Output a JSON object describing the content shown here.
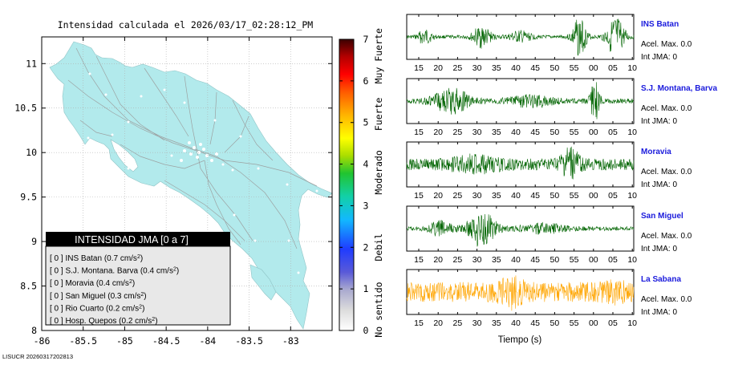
{
  "map": {
    "title": "Intensidad calculada el 2026/03/17_02:28:12_PM",
    "xlim": [
      -86,
      -82.5
    ],
    "ylim": [
      8,
      11.3
    ],
    "xticks": [
      -86,
      -85.5,
      -85,
      -84.5,
      -84,
      -83.5,
      -83
    ],
    "xtick_labels": [
      "-86",
      "-85.5",
      "-85",
      "-84.5",
      "-84",
      "-83.5",
      "-83"
    ],
    "yticks": [
      8,
      8.5,
      9,
      9.5,
      10,
      10.5,
      11
    ],
    "ytick_labels": [
      "8",
      "8.5",
      "9",
      "9.5",
      "10",
      "10.5",
      "11"
    ],
    "land_color": "#b2eaec"
  },
  "colorbar": {
    "ticks": [
      0,
      1,
      2,
      3,
      4,
      5,
      6,
      7
    ],
    "tick_labels": [
      "0",
      "1",
      "2",
      "3",
      "4",
      "5",
      "6",
      "7"
    ],
    "labels": [
      {
        "text": "No sentido",
        "value": 0.5
      },
      {
        "text": "Debil",
        "value": 2
      },
      {
        "text": "Moderado",
        "value": 3.8
      },
      {
        "text": "Fuerte",
        "value": 5.2
      },
      {
        "text": "Muy Fuerte",
        "value": 6.6
      }
    ]
  },
  "legend": {
    "header": "INTENSIDAD JMA [0 a 7]",
    "rows": [
      {
        "level": "[ 0 ]",
        "station": "INS Batan",
        "accel": "(0.7 cm/s",
        "sup": "2",
        "close": ")"
      },
      {
        "level": "[ 0 ]",
        "station": "S.J. Montana. Barva",
        "accel": "(0.4 cm/s",
        "sup": "2",
        "close": ")"
      },
      {
        "level": "[ 0 ]",
        "station": "Moravia",
        "accel": "(0.4 cm/s",
        "sup": "2",
        "close": ")"
      },
      {
        "level": "[ 0 ]",
        "station": "San Miguel",
        "accel": "(0.3 cm/s",
        "sup": "2",
        "close": ")"
      },
      {
        "level": "[ 0 ]",
        "station": "Rio Cuarto",
        "accel": "(0.2 cm/s",
        "sup": "2",
        "close": ")"
      },
      {
        "level": "[ 0 ]",
        "station": "Hosp. Quepos",
        "accel": "(0.2 cm/s",
        "sup": "2",
        "close": ")"
      }
    ]
  },
  "footer": "LISUCR 20260317202813",
  "chart_data": [
    {
      "type": "map",
      "title": "Intensidad calculada el 2026/03/17_02:28:12_PM",
      "xlim": [
        -86,
        -82.5
      ],
      "ylim": [
        8,
        11.3
      ],
      "colorbar_range": [
        0,
        7
      ]
    },
    {
      "type": "line",
      "xlabel": "Tiempo (s)",
      "x_tick_labels": [
        "15",
        "20",
        "25",
        "30",
        "35",
        "40",
        "45",
        "50",
        "55",
        "00",
        "05",
        "10"
      ],
      "series": [
        {
          "name": "INS Batan",
          "color": "#006400",
          "accel_label": "Acel. Max. 0.0",
          "int_label": "Int JMA: 0"
        },
        {
          "name": "S.J. Montana, Barva",
          "color": "#006400",
          "accel_label": "Acel. Max. 0.0",
          "int_label": "Int JMA: 0"
        },
        {
          "name": "Moravia",
          "color": "#006400",
          "accel_label": "Acel. Max. 0.0",
          "int_label": "Int JMA: 0"
        },
        {
          "name": "San Miguel",
          "color": "#006400",
          "accel_label": "Acel. Max. 0.0",
          "int_label": "Int JMA: 0"
        },
        {
          "name": "La Sabana",
          "color": "#ffa500",
          "accel_label": "Acel. Max. 0.0",
          "int_label": "Int JMA: 0"
        }
      ]
    }
  ]
}
